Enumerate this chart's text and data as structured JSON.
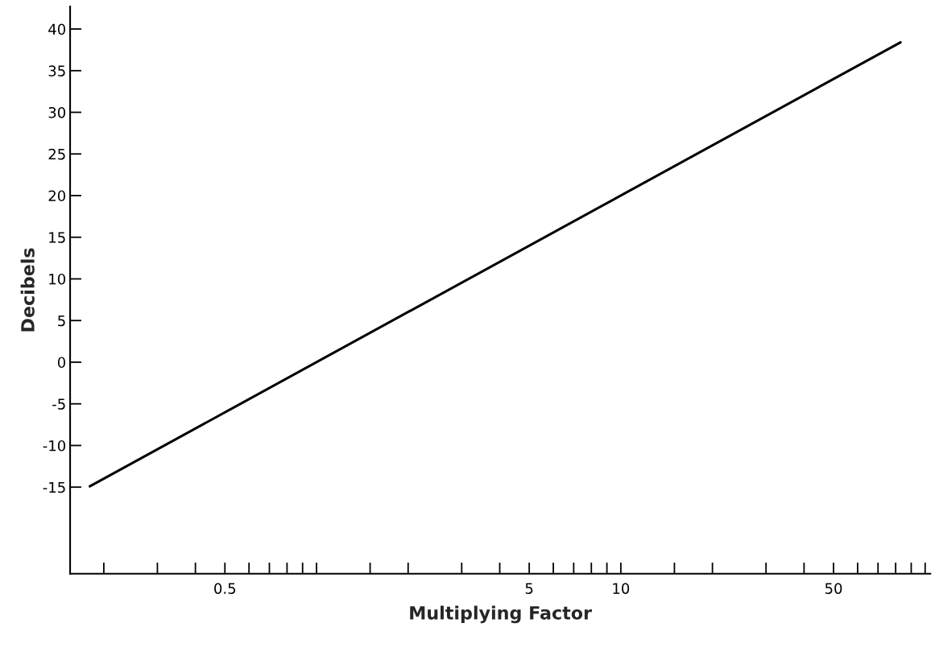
{
  "chart_data": {
    "type": "line",
    "xlabel": "Multiplying Factor",
    "ylabel": "Decibels",
    "log": "x",
    "x": [
      0.18,
      83
    ],
    "series": [
      {
        "color": "#000000",
        "values": [
          -14.9,
          38.4
        ]
      }
    ],
    "xlim": [
      0.155,
      104
    ],
    "ylim": [
      -25.4,
      42.7
    ],
    "xticks": [
      {
        "value": 0.2,
        "label": null
      },
      {
        "value": 0.3,
        "label": null
      },
      {
        "value": 0.4,
        "label": null
      },
      0.5,
      {
        "value": 0.6,
        "label": null
      },
      {
        "value": 0.7,
        "label": null
      },
      {
        "value": 0.8,
        "label": null
      },
      {
        "value": 0.9,
        "label": null
      },
      {
        "value": 1,
        "label": null
      },
      {
        "value": 1.5,
        "label": null
      },
      {
        "value": 2,
        "label": null
      },
      {
        "value": 3,
        "label": null
      },
      {
        "value": 4,
        "label": null
      },
      5,
      {
        "value": 6,
        "label": null
      },
      {
        "value": 7,
        "label": null
      },
      {
        "value": 8,
        "label": null
      },
      {
        "value": 9,
        "label": null
      },
      10,
      {
        "value": 15,
        "label": null
      },
      {
        "value": 20,
        "label": null
      },
      {
        "value": 30,
        "label": null
      },
      {
        "value": 40,
        "label": null
      },
      50,
      {
        "value": 60,
        "label": null
      },
      {
        "value": 70,
        "label": null
      },
      {
        "value": 80,
        "label": null
      },
      {
        "value": 90,
        "label": null
      },
      {
        "value": 100,
        "label": null
      }
    ],
    "yticks": [
      -15,
      -10,
      -5,
      0,
      5,
      10,
      15,
      20,
      25,
      30,
      35,
      40
    ],
    "grid": false,
    "legend": false,
    "marker": "none",
    "line_style": "solid"
  }
}
